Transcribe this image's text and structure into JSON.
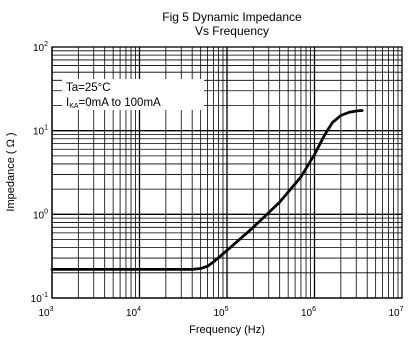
{
  "chart_data": {
    "type": "line",
    "title": "Fig 5 Dynamic Impedance",
    "subtitle": "Vs Frequency",
    "xlabel": "Frequency   (Hz)",
    "ylabel": "Impedance ( Ω )",
    "x_scale": "log",
    "y_scale": "log",
    "xlim": [
      1000,
      10000000
    ],
    "ylim": [
      0.1,
      100
    ],
    "grid": true,
    "x_ticks": [
      {
        "base": "10",
        "exp": "3"
      },
      {
        "base": "10",
        "exp": "4"
      },
      {
        "base": "10",
        "exp": "5"
      },
      {
        "base": "10",
        "exp": "6"
      },
      {
        "base": "10",
        "exp": "7"
      }
    ],
    "y_ticks": [
      {
        "base": "10",
        "exp": "-1"
      },
      {
        "base": "10",
        "exp": "0"
      },
      {
        "base": "10",
        "exp": "1"
      },
      {
        "base": "10",
        "exp": "2"
      }
    ],
    "annotations": {
      "line1": "Ta=25°C",
      "line2_prefix": "I",
      "line2_sub": "KA",
      "line2_rest": "=0mA to 100mA"
    },
    "series": [
      {
        "x": [
          1000,
          10000,
          40000,
          50000,
          60000,
          70000,
          100000,
          200000,
          400000,
          700000,
          1000000,
          1300000,
          1600000,
          2000000,
          2500000,
          3000000,
          3500000
        ],
        "y": [
          0.22,
          0.22,
          0.22,
          0.225,
          0.24,
          0.27,
          0.37,
          0.7,
          1.4,
          2.8,
          5.2,
          8.8,
          12.5,
          15.2,
          16.6,
          17.2,
          17.4
        ]
      }
    ],
    "colors": {
      "line": "#000000",
      "grid": "#000000",
      "background": "#ffffff"
    }
  }
}
